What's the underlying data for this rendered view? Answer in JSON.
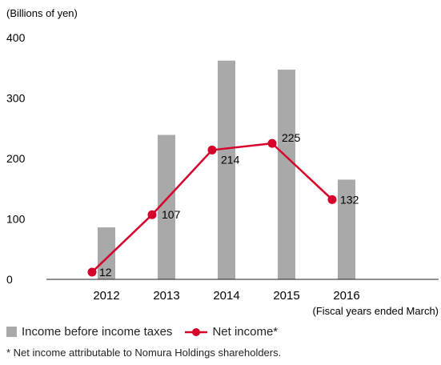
{
  "chart_data": {
    "type": "bar",
    "unit_label": "(Billions of yen)",
    "xlabel": "(Fiscal years ended March)",
    "categories": [
      "2012",
      "2013",
      "2014",
      "2015",
      "2016"
    ],
    "ylim": [
      0,
      400
    ],
    "yticks": [
      "0",
      "100",
      "200",
      "300",
      "400"
    ],
    "grid": false,
    "legend_position": "bottom-left",
    "series": [
      {
        "name": "Income before income taxes",
        "type": "bar",
        "color": "#a9a9a9",
        "values": [
          86,
          239,
          362,
          347,
          165
        ]
      },
      {
        "name": "Net income*",
        "type": "line",
        "color": "#d6002a",
        "values": [
          12,
          107,
          214,
          225,
          132
        ],
        "labels": [
          "12",
          "107",
          "214",
          "225",
          "132"
        ]
      }
    ],
    "footnote": "* Net income attributable to Nomura Holdings shareholders."
  }
}
